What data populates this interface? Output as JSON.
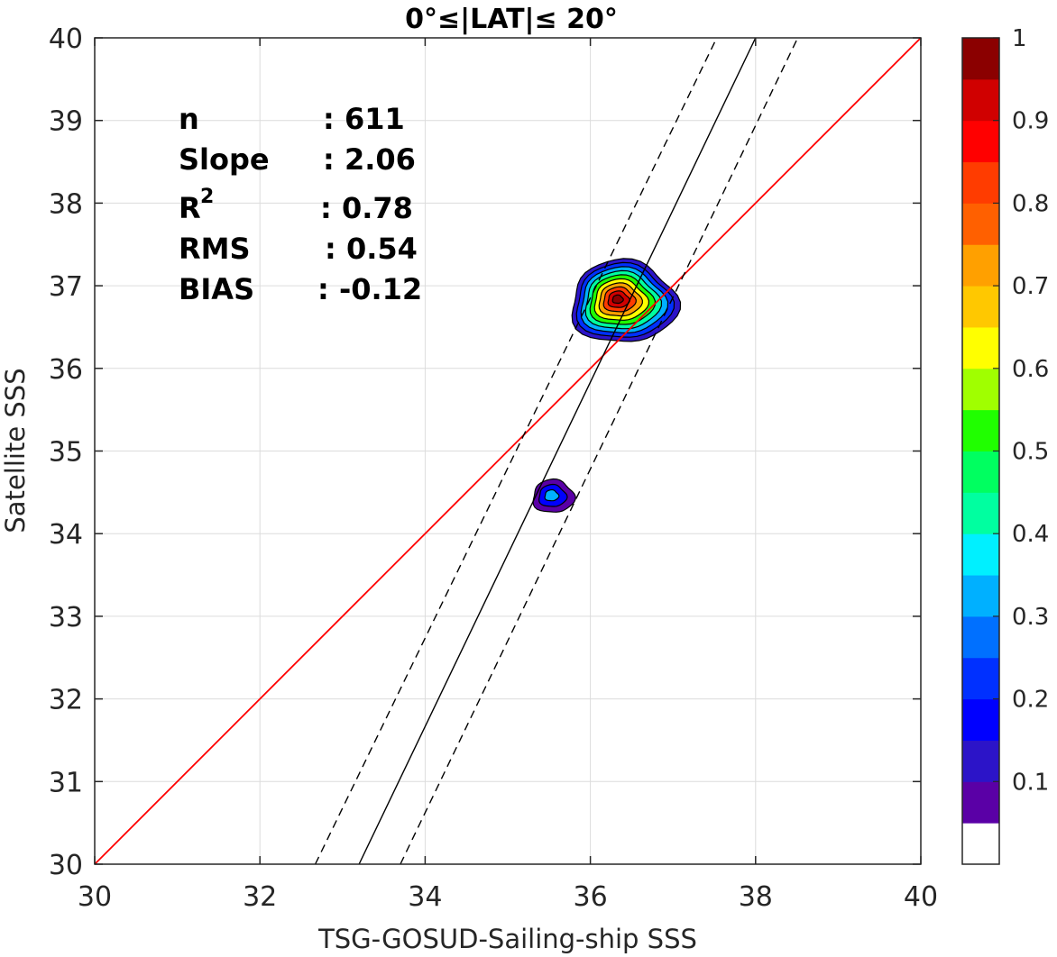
{
  "chart_data": {
    "type": "scatter",
    "title": "0°≤|LAT|≤ 20°",
    "xlabel": "TSG-GOSUD-Sailing-ship SSS",
    "ylabel": "Satellite SSS",
    "xlim": [
      30,
      40
    ],
    "ylim": [
      30,
      40
    ],
    "xticks": [
      "30",
      "32",
      "34",
      "36",
      "38",
      "40"
    ],
    "yticks": [
      "30",
      "31",
      "32",
      "33",
      "34",
      "35",
      "36",
      "37",
      "38",
      "39",
      "40"
    ],
    "grid": true,
    "stats": {
      "n_label": "n",
      "n_value": ": 611",
      "slope_label": "Slope",
      "slope_value": ": 2.06",
      "r2_label": "R",
      "r2_sup": "2",
      "r2_value": ": 0.78",
      "rms_label": "RMS",
      "rms_value": ": 0.54",
      "bias_label": "BIAS",
      "bias_value": ": -0.12"
    },
    "lines": [
      {
        "role": "one-to-one",
        "color": "#ff0000",
        "style": "solid",
        "points": [
          [
            30,
            30
          ],
          [
            40,
            40
          ]
        ]
      },
      {
        "role": "regression-fit",
        "color": "#000000",
        "style": "solid",
        "points": [
          [
            33.2,
            30
          ],
          [
            38.0,
            40
          ]
        ]
      },
      {
        "role": "confidence-upper",
        "color": "#000000",
        "style": "dashed",
        "points": [
          [
            32.67,
            30
          ],
          [
            37.53,
            40
          ]
        ]
      },
      {
        "role": "confidence-lower",
        "color": "#000000",
        "style": "dashed",
        "points": [
          [
            33.7,
            30
          ],
          [
            38.51,
            40
          ]
        ]
      }
    ],
    "density_blobs": [
      {
        "cx": 36.4,
        "cy": 36.8,
        "rx": 0.64,
        "ry": 0.5,
        "peak": 1.0,
        "levels": 10
      },
      {
        "cx": 35.55,
        "cy": 34.45,
        "rx": 0.25,
        "ry": 0.2,
        "peak": 0.3,
        "levels": 3
      }
    ],
    "colorbar": {
      "range": [
        0,
        1
      ],
      "ticks": [
        "0.1",
        "0.2",
        "0.3",
        "0.4",
        "0.5",
        "0.6",
        "0.7",
        "0.8",
        "0.9",
        "1"
      ],
      "colors": [
        "#ffffff",
        "#5a00a6",
        "#2c14c8",
        "#0000ff",
        "#0030ff",
        "#0070ff",
        "#00b0ff",
        "#00f0ff",
        "#00ffa0",
        "#00ff60",
        "#20ff00",
        "#a0ff00",
        "#ffff00",
        "#ffc800",
        "#ffa000",
        "#ff6000",
        "#ff3c00",
        "#ff0000",
        "#d00000",
        "#8b0000"
      ]
    }
  }
}
